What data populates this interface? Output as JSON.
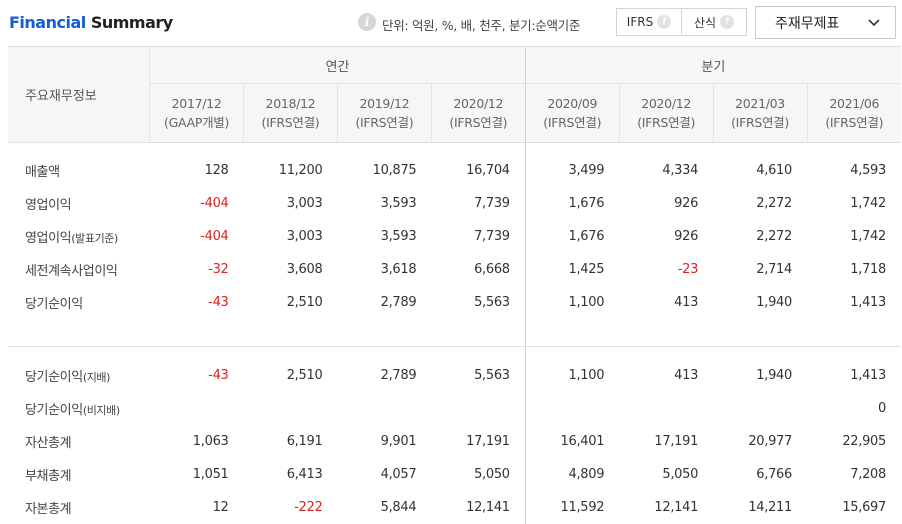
{
  "header": {
    "title_accent": "Financial",
    "title_rest": " Summary",
    "info_icon": "i",
    "unit_text": "단위: 억원, %, 배, 천주, 분기:순액기준",
    "toggle": [
      {
        "label": "IFRS",
        "help": "?"
      },
      {
        "label": "산식",
        "help": "?"
      }
    ],
    "dropdown_value": "주재무제표"
  },
  "table": {
    "row_header": "주요재무정보",
    "group_annual": "연간",
    "group_quarter": "분기",
    "columns": [
      {
        "period": "2017/12",
        "basis": "(GAAP개별)"
      },
      {
        "period": "2018/12",
        "basis": "(IFRS연결)"
      },
      {
        "period": "2019/12",
        "basis": "(IFRS연결)"
      },
      {
        "period": "2020/12",
        "basis": "(IFRS연결)"
      },
      {
        "period": "2020/09",
        "basis": "(IFRS연결)"
      },
      {
        "period": "2020/12",
        "basis": "(IFRS연결)"
      },
      {
        "period": "2021/03",
        "basis": "(IFRS연결)"
      },
      {
        "period": "2021/06",
        "basis": "(IFRS연결)"
      }
    ],
    "rows": [
      {
        "label": "매출액",
        "sub": "",
        "values": [
          "128",
          "11,200",
          "10,875",
          "16,704",
          "3,499",
          "4,334",
          "4,610",
          "4,593"
        ]
      },
      {
        "label": "영업이익",
        "sub": "",
        "values": [
          "-404",
          "3,003",
          "3,593",
          "7,739",
          "1,676",
          "926",
          "2,272",
          "1,742"
        ]
      },
      {
        "label": "영업이익",
        "sub": "(발표기준)",
        "values": [
          "-404",
          "3,003",
          "3,593",
          "7,739",
          "1,676",
          "926",
          "2,272",
          "1,742"
        ]
      },
      {
        "label": "세전계속사업이익",
        "sub": "",
        "values": [
          "-32",
          "3,608",
          "3,618",
          "6,668",
          "1,425",
          "-23",
          "2,714",
          "1,718"
        ]
      },
      {
        "label": "당기순이익",
        "sub": "",
        "values": [
          "-43",
          "2,510",
          "2,789",
          "5,563",
          "1,100",
          "413",
          "1,940",
          "1,413"
        ]
      },
      {
        "label": "당기순이익",
        "sub": "(지배)",
        "values": [
          "-43",
          "2,510",
          "2,789",
          "5,563",
          "1,100",
          "413",
          "1,940",
          "1,413"
        ]
      },
      {
        "label": "당기순이익",
        "sub": "(비지배)",
        "values": [
          "",
          "",
          "",
          "",
          "",
          "",
          "",
          "0"
        ]
      },
      {
        "label": "자산총계",
        "sub": "",
        "values": [
          "1,063",
          "6,191",
          "9,901",
          "17,191",
          "16,401",
          "17,191",
          "20,977",
          "22,905"
        ]
      },
      {
        "label": "부채총계",
        "sub": "",
        "values": [
          "1,051",
          "6,413",
          "4,057",
          "5,050",
          "4,809",
          "5,050",
          "6,766",
          "7,208"
        ]
      },
      {
        "label": "자본총계",
        "sub": "",
        "values": [
          "12",
          "-222",
          "5,844",
          "12,141",
          "11,592",
          "12,141",
          "14,211",
          "15,697"
        ]
      }
    ]
  },
  "colors": {
    "accent": "#1a5ad8",
    "negative": "#e02020",
    "header_bg": "#f6f6f6"
  }
}
